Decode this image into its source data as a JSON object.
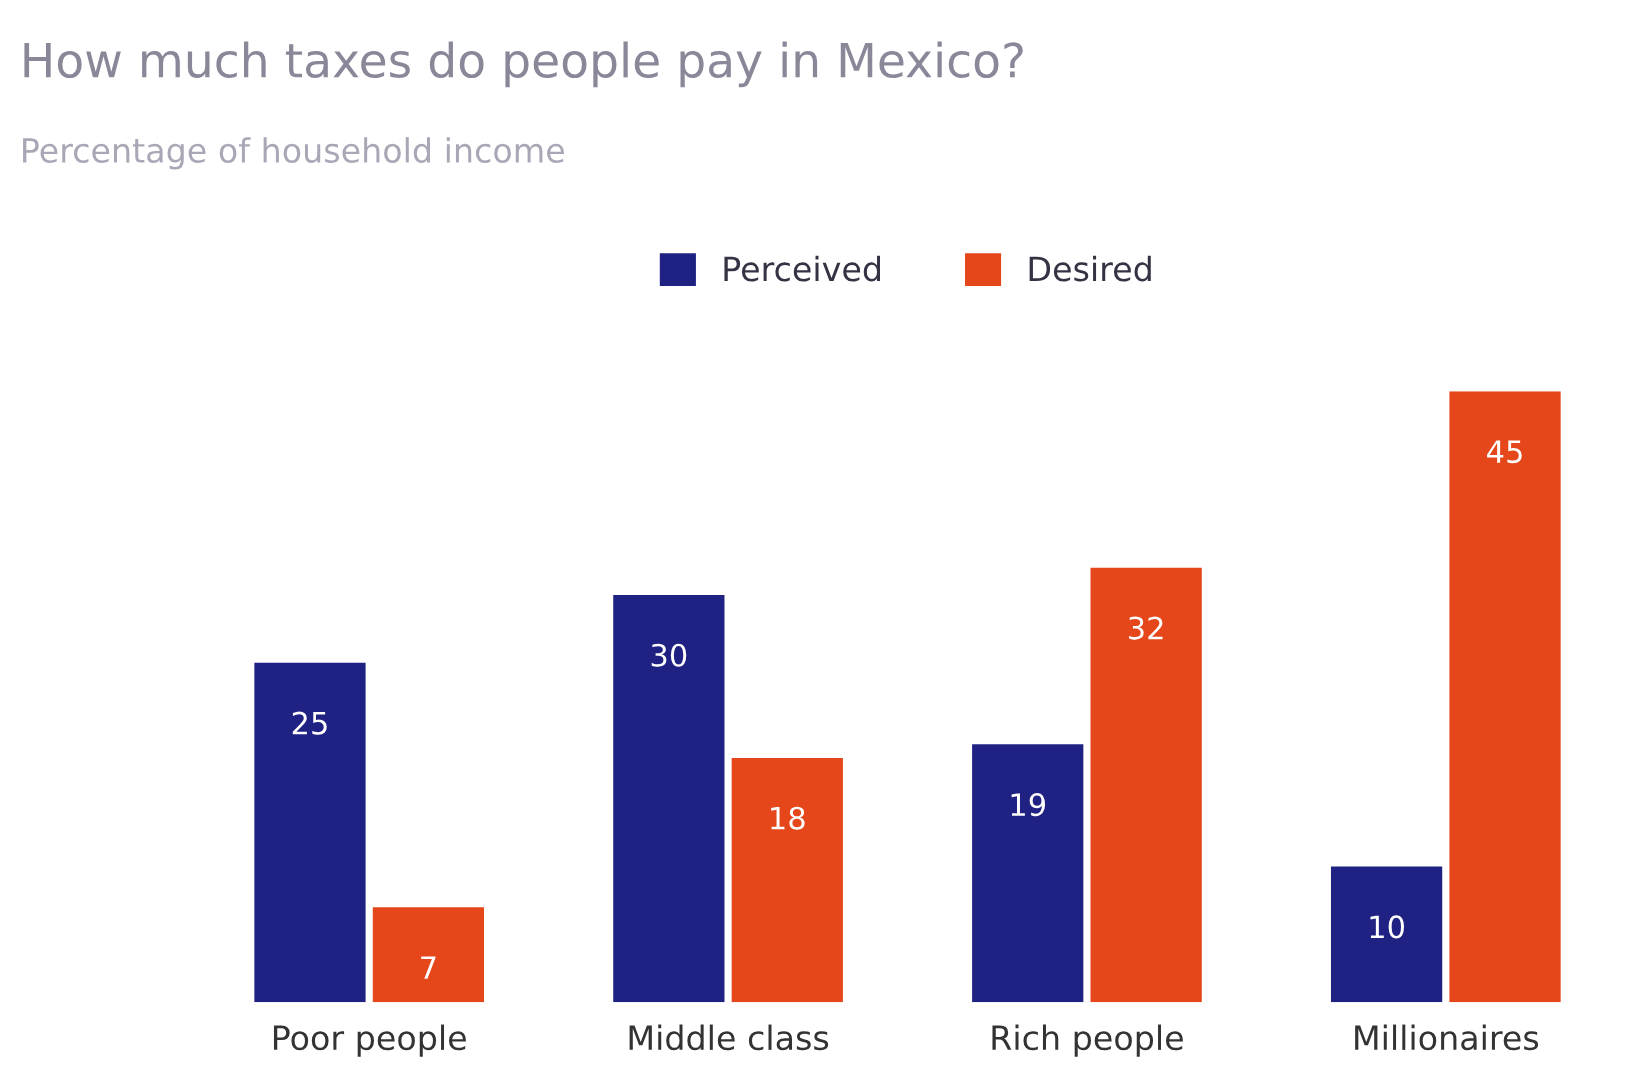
{
  "chart_data": {
    "type": "bar",
    "title": "How much taxes do people pay in Mexico?",
    "subtitle": "Percentage of household income",
    "categories": [
      "Poor people",
      "Middle class",
      "Rich people",
      "Millionaires"
    ],
    "series": [
      {
        "name": "Perceived",
        "color": "#1f2283",
        "values": [
          25,
          30,
          19,
          10
        ]
      },
      {
        "name": "Desired",
        "color": "#e5461a",
        "values": [
          7,
          18,
          32,
          45
        ]
      }
    ],
    "data_labels": true,
    "legend": "top",
    "grid": false,
    "tick_labels": "x"
  }
}
